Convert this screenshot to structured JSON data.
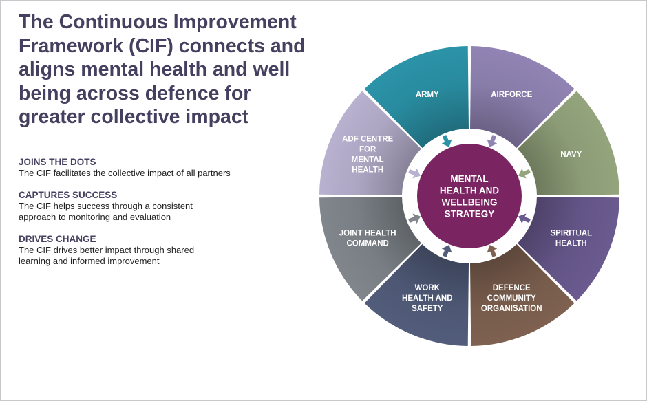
{
  "headline": "The Continuous Improvement Framework (CIF) connects and aligns mental health and well being across defence for greater collective impact",
  "points": [
    {
      "heading": "JOINS THE DOTS",
      "text": "The CIF facilitates the collective impact of all partners"
    },
    {
      "heading": "CAPTURES SUCCESS",
      "text": "The CIF helps success through a consistent\napproach to monitoring and evaluation"
    },
    {
      "heading": "DRIVES CHANGE",
      "text": "The CIF drives better impact through shared\nlearning and informed improvement"
    }
  ],
  "wheel": {
    "center": {
      "lines": [
        "MENTAL",
        "HEALTH AND",
        "WELLBEING",
        "STRATEGY"
      ],
      "color": "#7a2562"
    },
    "segments": [
      {
        "lines": [
          "AIRFORCE"
        ],
        "color": "#9184b4"
      },
      {
        "lines": [
          "NAVY"
        ],
        "color": "#94a57d"
      },
      {
        "lines": [
          "SPIRITUAL",
          "HEALTH"
        ],
        "color": "#6a5a8f"
      },
      {
        "lines": [
          "DEFENCE",
          "COMMUNITY",
          "ORGANISATION"
        ],
        "color": "#7e6150"
      },
      {
        "lines": [
          "WORK",
          "HEALTH AND",
          "SAFETY"
        ],
        "color": "#525d7b"
      },
      {
        "lines": [
          "JOINT HEALTH",
          "COMMAND"
        ],
        "color": "#80868c"
      },
      {
        "lines": [
          "ADF CENTRE",
          "FOR",
          "MENTAL",
          "HEALTH"
        ],
        "color": "#b8b1cf"
      },
      {
        "lines": [
          "ARMY"
        ],
        "color": "#2b93a8"
      }
    ]
  }
}
